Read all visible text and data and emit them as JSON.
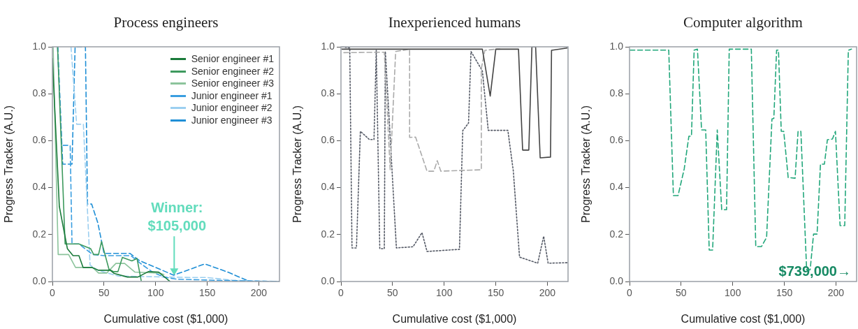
{
  "chart_data": [
    {
      "type": "line",
      "title": "Process engineers",
      "xlabel": "Cumulative cost ($1,000)",
      "ylabel": "Progress Tracker (A.U.)",
      "xlim": [
        0,
        220
      ],
      "ylim": [
        0,
        1
      ],
      "xticks": [
        0,
        50,
        100,
        150,
        200
      ],
      "yticks": [
        {
          "value": 0,
          "label": "0.0"
        },
        {
          "value": 0.2,
          "label": "0.2"
        },
        {
          "value": 0.4,
          "label": "0.4"
        },
        {
          "value": 0.6,
          "label": "0.6"
        },
        {
          "value": 0.8,
          "label": "0.8"
        },
        {
          "value": 1,
          "label": "1.0"
        }
      ],
      "legend": "top right",
      "annotations": [
        {
          "text": "Winner:\n$105,000",
          "x": 118,
          "y": 0.02
        }
      ],
      "series": [
        {
          "name": "Senior engineer #1",
          "color": "#1a7a3a",
          "line_style": "solid",
          "x": [
            0,
            6.7,
            14.5,
            20,
            25.7,
            29.7,
            38,
            44.7,
            56,
            60,
            72.7,
            82.8,
            92.9,
            103,
            114
          ],
          "values": [
            0.95,
            0.32,
            0.14,
            0.11,
            0.11,
            0.06,
            0.06,
            0.048,
            0.048,
            0.034,
            0.019,
            0.019,
            0.042,
            0.04,
            0
          ]
        },
        {
          "name": "Senior engineer #2",
          "color": "#3e9a5e",
          "line_style": "solid",
          "x": [
            5,
            12.3,
            25.7,
            37,
            40,
            44.7,
            47.6,
            54.8,
            59.3,
            63.5,
            67.8,
            77,
            82,
            86
          ],
          "values": [
            1.0,
            0.16,
            0.16,
            0.14,
            0.115,
            0.115,
            0.17,
            0.052,
            0.042,
            0.042,
            0.103,
            0.088,
            0.098,
            0.004
          ]
        },
        {
          "name": "Senior engineer #3",
          "color": "#8cc49c",
          "line_style": "solid",
          "x": [
            0.7,
            5.6,
            15.7,
            22.4,
            39,
            44.7,
            52.6,
            61.5,
            70,
            80,
            95,
            104,
            108
          ],
          "values": [
            1.0,
            0.115,
            0.115,
            0.06,
            0.06,
            0.036,
            0.036,
            0.077,
            0.077,
            0.04,
            0.037,
            0.036,
            0.03
          ]
        },
        {
          "name": "Junior engineer #1",
          "color": "#3a9ee0",
          "line_style": "dashed",
          "x": [
            5.3,
            9,
            17.2,
            19,
            25.7,
            32.4,
            39,
            50,
            76,
            86,
            97,
            108,
            120,
            160,
            220
          ],
          "values": [
            1.0,
            0.58,
            0.58,
            0.16,
            0.16,
            0.137,
            0.115,
            0.11,
            0.11,
            0.075,
            0.04,
            0.019,
            0.01,
            0.005,
            0
          ]
        },
        {
          "name": "Junior engineer #2",
          "color": "#9ccff0",
          "line_style": "dashed",
          "x": [
            18,
            23.5,
            30,
            36.5,
            44,
            64,
            100,
            135,
            150,
            175,
            220
          ],
          "values": [
            1.0,
            0.67,
            0.67,
            0.07,
            0.048,
            0.023,
            0.02,
            0.017,
            0.017,
            0.005,
            0
          ]
        },
        {
          "name": "Junior engineer #3",
          "color": "#1f8fd6",
          "line_style": "dashed",
          "x": [
            5,
            10,
            19,
            22,
            25,
            32,
            34,
            38,
            44,
            50,
            75,
            84,
            100,
            117.5,
            132,
            147.6,
            170,
            191,
            220
          ],
          "values": [
            1.0,
            0.5,
            0.5,
            1.0,
            1.0,
            1.0,
            0.33,
            0.33,
            0.25,
            0.12,
            0.12,
            0.09,
            0.06,
            0.027,
            0.05,
            0.075,
            0.04,
            0,
            0
          ]
        }
      ]
    },
    {
      "type": "line",
      "title": "Inexperienced humans",
      "xlabel": "Cumulative cost ($1,000)",
      "ylabel": "Progress Tracker (A.U.)",
      "xlim": [
        0,
        220
      ],
      "ylim": [
        0,
        1
      ],
      "xticks": [
        0,
        50,
        100,
        150,
        200
      ],
      "yticks": [
        {
          "value": 0,
          "label": "0.0"
        },
        {
          "value": 0.2,
          "label": "0.2"
        },
        {
          "value": 0.4,
          "label": "0.4"
        },
        {
          "value": 0.6,
          "label": "0.6"
        },
        {
          "value": 0.8,
          "label": "0.8"
        },
        {
          "value": 1,
          "label": "1.0"
        }
      ],
      "series": [
        {
          "color": "#444444",
          "line_style": "solid",
          "x": [
            1,
            137,
            144.6,
            150,
            172,
            176,
            182,
            185,
            188.6,
            193,
            203,
            204,
            219
          ],
          "values": [
            0.99,
            0.99,
            0.79,
            0.99,
            0.99,
            0.56,
            0.56,
            1.0,
            1.0,
            0.527,
            0.53,
            0.985,
            0.995
          ]
        },
        {
          "color": "#aaaaaa",
          "line_style": "dashed",
          "x": [
            2.8,
            42,
            47.7,
            53,
            66.5,
            66.5,
            72.3,
            83.4,
            90,
            93.3,
            96.7,
            136,
            136,
            139.4,
            150,
            154
          ],
          "values": [
            0.975,
            0.977,
            0.476,
            0.98,
            0.99,
            0.614,
            0.615,
            0.47,
            0.47,
            0.515,
            0.47,
            0.476,
            0.907,
            0.985,
            0.99,
            0.99
          ]
        },
        {
          "color": "#555a66",
          "line_style": "dotted",
          "x": [
            1,
            8.5,
            10.7,
            15,
            18.8,
            27.5,
            32,
            34.2,
            37.6,
            42,
            43,
            53.7,
            69.8,
            78.5,
            83.4,
            114.8,
            118,
            123.6,
            126,
            137,
            142.7,
            161.7,
            167,
            173,
            190.6,
            196.4,
            200.7,
            219
          ],
          "values": [
            1.0,
            0.995,
            0.143,
            0.143,
            0.64,
            0.605,
            0.605,
            0.985,
            0.14,
            0.14,
            0.98,
            0.143,
            0.148,
            0.208,
            0.128,
            0.137,
            0.643,
            0.675,
            0.98,
            0.897,
            0.644,
            0.644,
            0.47,
            0.104,
            0.078,
            0.193,
            0.078,
            0.08
          ]
        }
      ]
    },
    {
      "type": "line",
      "title": "Computer algorithm",
      "xlabel": "Cumulative cost ($1,000)",
      "ylabel": "Progress Tracker (A.U.)",
      "xlim": [
        0,
        220
      ],
      "ylim": [
        0,
        1
      ],
      "xticks": [
        0,
        50,
        100,
        150,
        200
      ],
      "yticks": [
        {
          "value": 0,
          "label": "0.0"
        },
        {
          "value": 0.2,
          "label": "0.2"
        },
        {
          "value": 0.4,
          "label": "0.4"
        },
        {
          "value": 0.6,
          "label": "0.6"
        },
        {
          "value": 0.8,
          "label": "0.8"
        },
        {
          "value": 1,
          "label": "1.0"
        }
      ],
      "annotations": [
        "$739,000→"
      ],
      "series": [
        {
          "color": "#22a77b",
          "line_style": "dashed",
          "x": [
            0.4,
            38,
            42.5,
            47,
            53,
            57.5,
            60,
            62.6,
            65.8,
            69.8,
            73.8,
            77.2,
            80.5,
            85,
            89.3,
            94,
            96.6,
            110,
            118,
            122.3,
            127.9,
            132.8,
            138,
            139.8,
            142.5,
            144.3,
            147,
            149.4,
            153.7,
            160.4,
            163.3,
            166,
            171.6,
            175,
            178.3,
            181.7,
            185,
            188.8,
            191.7,
            196.6,
            199.5,
            204,
            208.5,
            212,
            215
          ],
          "values": [
            0.986,
            0.986,
            0.366,
            0.366,
            0.48,
            0.619,
            0.619,
            0.986,
            0.99,
            0.646,
            0.646,
            0.134,
            0.134,
            0.646,
            0.306,
            0.306,
            0.99,
            0.99,
            0.99,
            0.149,
            0.149,
            0.188,
            0.693,
            0.695,
            0.986,
            0.986,
            0.64,
            0.64,
            0.443,
            0.44,
            0.64,
            0.64,
            0.05,
            0.05,
            0.202,
            0.202,
            0.5,
            0.5,
            0.604,
            0.607,
            0.64,
            0.238,
            0.238,
            0.985,
            0.99
          ]
        }
      ]
    }
  ]
}
